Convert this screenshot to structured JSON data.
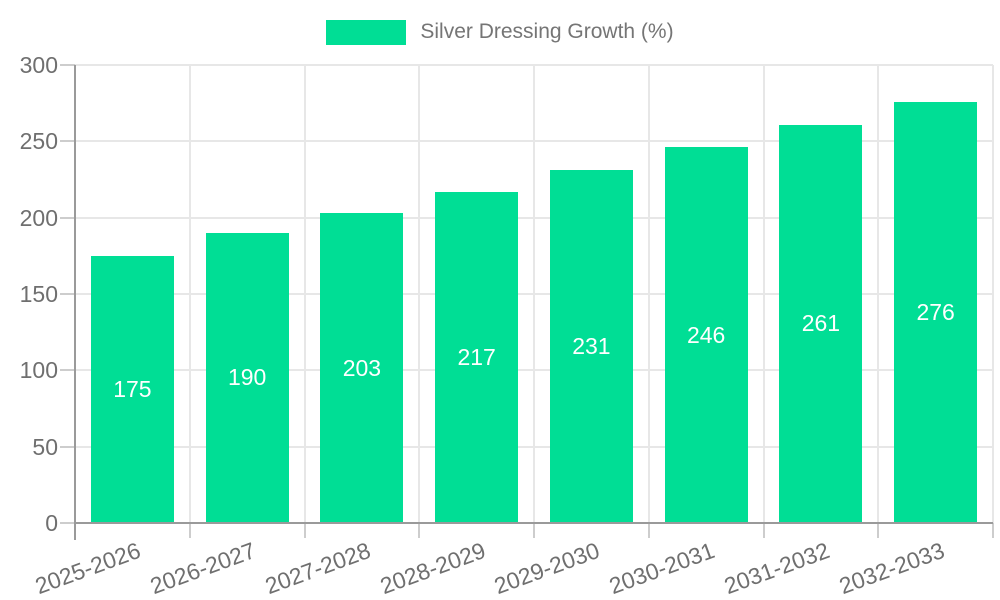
{
  "chart_data": {
    "type": "bar",
    "title": "",
    "legend": "Silver Dressing Growth (%)",
    "legend_position": "top",
    "categories": [
      "2025-2026",
      "2026-2027",
      "2027-2028",
      "2028-2029",
      "2029-2030",
      "2030-2031",
      "2031-2032",
      "2032-2033"
    ],
    "series": [
      {
        "name": "Silver Dressing Growth (%)",
        "values": [
          175,
          190,
          203,
          217,
          231,
          246,
          261,
          276
        ]
      }
    ],
    "value_labels": [
      "175",
      "190",
      "203",
      "217",
      "231",
      "246",
      "261",
      "276"
    ],
    "xlabel": "",
    "ylabel": "",
    "ylim": [
      0,
      300
    ],
    "yticks": [
      0,
      50,
      100,
      150,
      200,
      250,
      300
    ],
    "grid": true,
    "colors": {
      "bar": "#00DE95",
      "bar_value_text": "#ffffff",
      "grid_line": "#e7e7e7",
      "tick_line": "#cdcdcd",
      "axis_line": "#9a9a9a",
      "axis_text": "#6f6f6f",
      "legend_text": "#757575",
      "background": "#ffffff"
    }
  }
}
